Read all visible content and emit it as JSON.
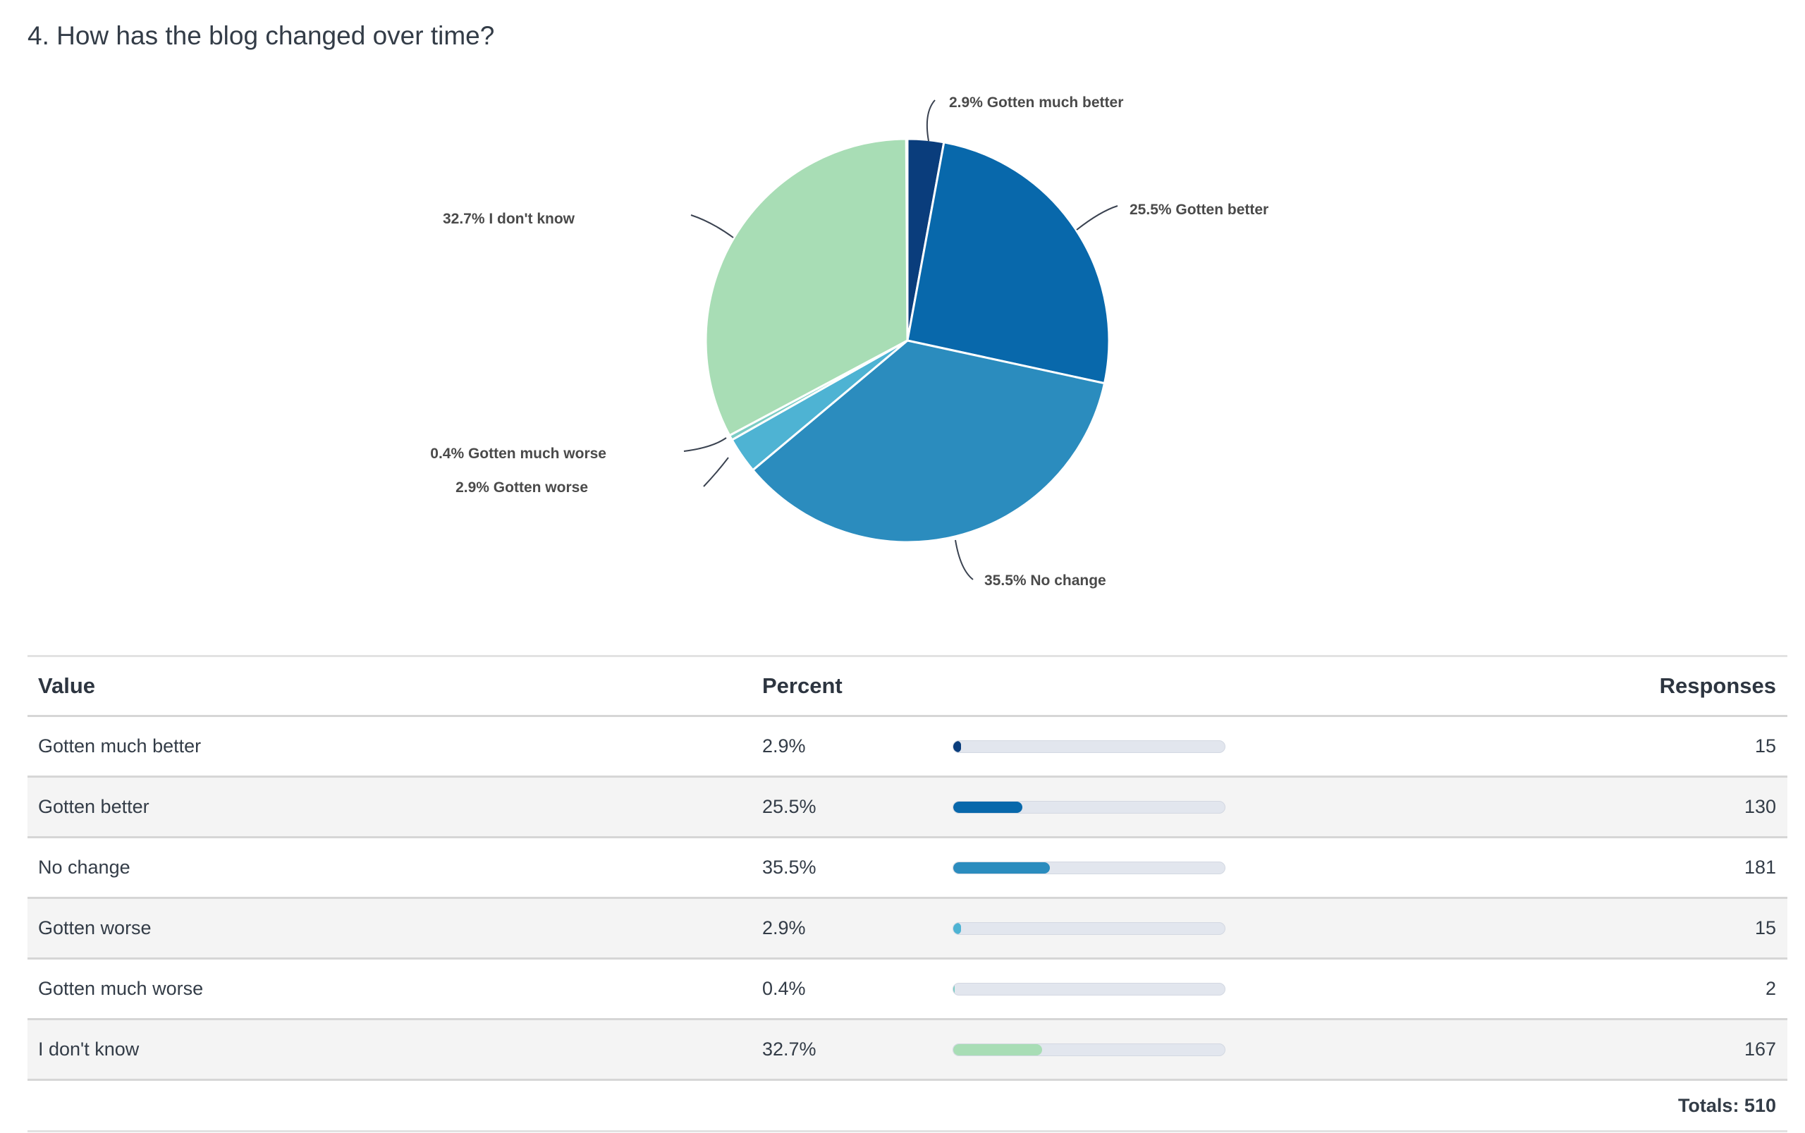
{
  "title": "4. How has the blog changed over time?",
  "chart_data": {
    "type": "pie",
    "title": "4. How has the blog changed over time?",
    "slices": [
      {
        "label": "Gotten much better",
        "percent": 2.9,
        "responses": 15,
        "color": "#0a3d7c",
        "data_label": "2.9% Gotten much better"
      },
      {
        "label": "Gotten better",
        "percent": 25.5,
        "responses": 130,
        "color": "#0868ab",
        "data_label": "25.5% Gotten better"
      },
      {
        "label": "No change",
        "percent": 35.5,
        "responses": 181,
        "color": "#2b8cbe",
        "data_label": "35.5% No change"
      },
      {
        "label": "Gotten worse",
        "percent": 2.9,
        "responses": 15,
        "color": "#4eb3d3",
        "data_label": "2.9% Gotten worse"
      },
      {
        "label": "Gotten much worse",
        "percent": 0.4,
        "responses": 2,
        "color": "#7bccc4",
        "data_label": "0.4% Gotten much worse"
      },
      {
        "label": "I don't know",
        "percent": 32.7,
        "responses": 167,
        "color": "#a8ddb5",
        "data_label": "32.7% I don't know"
      }
    ]
  },
  "table": {
    "headers": {
      "value": "Value",
      "percent": "Percent",
      "responses": "Responses"
    },
    "rows": [
      {
        "value": "Gotten much better",
        "percent": "2.9%",
        "responses": "15"
      },
      {
        "value": "Gotten better",
        "percent": "25.5%",
        "responses": "130"
      },
      {
        "value": "No change",
        "percent": "35.5%",
        "responses": "181"
      },
      {
        "value": "Gotten worse",
        "percent": "2.9%",
        "responses": "15"
      },
      {
        "value": "Gotten much worse",
        "percent": "0.4%",
        "responses": "2"
      },
      {
        "value": "I don't know",
        "percent": "32.7%",
        "responses": "167"
      }
    ],
    "totals": "Totals: 510"
  }
}
